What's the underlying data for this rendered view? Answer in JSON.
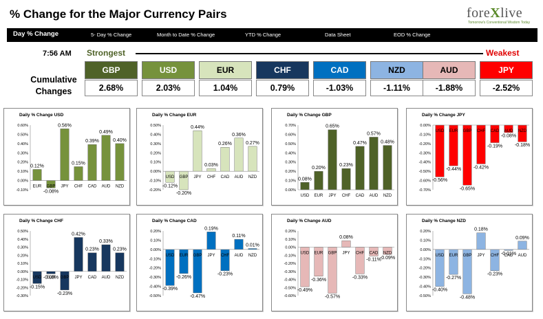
{
  "header": {
    "title": "% Change for the Major Currency Pairs",
    "logo": {
      "main_a": "fore",
      "main_x": "X",
      "main_b": "live",
      "tagline": "Tomorrow's Conventional Wisdom Today"
    }
  },
  "tabs": [
    {
      "label": "Day % Change",
      "active": true
    },
    {
      "label": "5- Day % Change"
    },
    {
      "label": "Month to Date % Change"
    },
    {
      "label": "YTD % Change"
    },
    {
      "label": "Data Sheet"
    },
    {
      "label": "EOD % Change"
    }
  ],
  "summary": {
    "time": "7:56 AM",
    "strongest_label": "Strongest",
    "weakest_label": "Weakest",
    "cumulative_label_line1": "Cumulative",
    "cumulative_label_line2": "Changes",
    "currencies": [
      {
        "code": "GBP",
        "value": "2.68%",
        "color": "#4f6228",
        "text_color": "#ffffff"
      },
      {
        "code": "USD",
        "value": "2.03%",
        "color": "#76923c",
        "text_color": "#ffffff"
      },
      {
        "code": "EUR",
        "value": "1.04%",
        "color": "#d7e4bc",
        "text_color": "#000000"
      },
      {
        "code": "CHF",
        "value": "0.79%",
        "color": "#17375e",
        "text_color": "#ffffff"
      },
      {
        "code": "CAD",
        "value": "-1.03%",
        "color": "#0070c0",
        "text_color": "#ffffff"
      },
      {
        "code": "NZD",
        "value": "-1.11%",
        "color": "#8db4e2",
        "text_color": "#000000"
      },
      {
        "code": "AUD",
        "value": "-1.88%",
        "color": "#e6b8b7",
        "text_color": "#000000"
      },
      {
        "code": "JPY",
        "value": "-2.52%",
        "color": "#ff0000",
        "text_color": "#ffffff"
      }
    ]
  },
  "chart_data": [
    {
      "type": "bar",
      "title": "Daily % Change USD",
      "color": "#76923c",
      "categories": [
        "EUR",
        "GBP",
        "JPY",
        "CHF",
        "CAD",
        "AUD",
        "NZD"
      ],
      "values": [
        0.12,
        -0.08,
        0.56,
        0.15,
        0.39,
        0.49,
        0.4
      ],
      "labels": [
        "0.12%",
        "-0.08%",
        "0.56%",
        "0.15%",
        "0.39%",
        "0.49%",
        "0.40%"
      ],
      "yticks": [
        "0.60%",
        "0.50%",
        "0.40%",
        "0.30%",
        "0.20%",
        "0.10%",
        "0.00%",
        "-0.10%"
      ],
      "ylim": [
        -0.1,
        0.6
      ]
    },
    {
      "type": "bar",
      "title": "Daily % Change EUR",
      "color": "#d7e4bc",
      "categories": [
        "USD",
        "GBP",
        "JPY",
        "CHF",
        "CAD",
        "AUD",
        "NZD"
      ],
      "values": [
        -0.12,
        -0.2,
        0.44,
        0.03,
        0.26,
        0.36,
        0.27
      ],
      "labels": [
        "-0.12%",
        "-0.20%",
        "0.44%",
        "0.03%",
        "0.26%",
        "0.36%",
        "0.27%"
      ],
      "yticks": [
        "0.50%",
        "0.40%",
        "0.30%",
        "0.20%",
        "0.10%",
        "0.00%",
        "-0.10%",
        "-0.20%"
      ],
      "ylim": [
        -0.2,
        0.5
      ]
    },
    {
      "type": "bar",
      "title": "Daily % Change GBP",
      "color": "#4f6228",
      "categories": [
        "USD",
        "EUR",
        "JPY",
        "CHF",
        "CAD",
        "AUD",
        "NZD"
      ],
      "values": [
        0.08,
        0.2,
        0.65,
        0.23,
        0.47,
        0.57,
        0.48
      ],
      "labels": [
        "0.08%",
        "0.20%",
        "0.65%",
        "0.23%",
        "0.47%",
        "0.57%",
        "0.48%"
      ],
      "yticks": [
        "0.70%",
        "0.60%",
        "0.50%",
        "0.40%",
        "0.30%",
        "0.20%",
        "0.10%",
        "0.00%"
      ],
      "ylim": [
        0.0,
        0.7
      ]
    },
    {
      "type": "bar",
      "title": "Daily % Change JPY",
      "color": "#ff0000",
      "categories": [
        "USD",
        "EUR",
        "GBP",
        "CHF",
        "CAD",
        "AUD",
        "NZD"
      ],
      "values": [
        -0.56,
        -0.44,
        -0.65,
        -0.42,
        -0.19,
        -0.08,
        -0.18
      ],
      "labels": [
        "-0.56%",
        "-0.44%",
        "-0.65%",
        "-0.42%",
        "-0.19%",
        "-0.08%",
        "-0.18%"
      ],
      "yticks": [
        "0.00%",
        "-0.10%",
        "-0.20%",
        "-0.30%",
        "-0.40%",
        "-0.50%",
        "-0.60%",
        "-0.70%"
      ],
      "ylim": [
        -0.7,
        0.0
      ]
    },
    {
      "type": "bar",
      "title": "Daily % Change CHF",
      "color": "#17375e",
      "categories": [
        "USD",
        "EUR",
        "GBP",
        "JPY",
        "CAD",
        "AUD",
        "NZD"
      ],
      "values": [
        -0.15,
        -0.03,
        -0.23,
        0.42,
        0.23,
        0.33,
        0.23
      ],
      "labels": [
        "-0.15%",
        "-0.03%",
        "-0.23%",
        "0.42%",
        "0.23%",
        "0.33%",
        "0.23%"
      ],
      "yticks": [
        "0.50%",
        "0.40%",
        "0.30%",
        "0.20%",
        "0.10%",
        "0.00%",
        "-0.10%",
        "-0.20%",
        "-0.30%"
      ],
      "ylim": [
        -0.3,
        0.5
      ]
    },
    {
      "type": "bar",
      "title": "Daily % Change CAD",
      "color": "#0070c0",
      "categories": [
        "USD",
        "EUR",
        "GBP",
        "JPY",
        "CHF",
        "AUD",
        "NZD"
      ],
      "values": [
        -0.39,
        -0.26,
        -0.47,
        0.19,
        -0.23,
        0.11,
        0.01
      ],
      "labels": [
        "-0.39%",
        "-0.26%",
        "-0.47%",
        "0.19%",
        "-0.23%",
        "0.11%",
        "0.01%"
      ],
      "yticks": [
        "0.20%",
        "0.10%",
        "0.00%",
        "-0.10%",
        "-0.20%",
        "-0.30%",
        "-0.40%",
        "-0.50%"
      ],
      "ylim": [
        -0.5,
        0.2
      ]
    },
    {
      "type": "bar",
      "title": "Daily % Change AUD",
      "color": "#e6b8b7",
      "categories": [
        "USD",
        "EUR",
        "GBP",
        "JPY",
        "CHF",
        "CAD",
        "NZD"
      ],
      "values": [
        -0.49,
        -0.36,
        -0.57,
        0.08,
        -0.33,
        -0.11,
        -0.09
      ],
      "labels": [
        "-0.49%",
        "-0.36%",
        "-0.57%",
        "0.08%",
        "-0.33%",
        "-0.11%",
        "-0.09%"
      ],
      "yticks": [
        "0.20%",
        "0.10%",
        "0.00%",
        "-0.10%",
        "-0.20%",
        "-0.30%",
        "-0.40%",
        "-0.50%",
        "-0.60%"
      ],
      "ylim": [
        -0.6,
        0.2
      ]
    },
    {
      "type": "bar",
      "title": "Daily % Change NZD",
      "color": "#8db4e2",
      "categories": [
        "USD",
        "EUR",
        "GBP",
        "JPY",
        "CHF",
        "CAD",
        "AUD"
      ],
      "values": [
        -0.4,
        -0.27,
        -0.48,
        0.18,
        -0.23,
        -0.01,
        0.09
      ],
      "labels": [
        "-0.40%",
        "-0.27%",
        "-0.48%",
        "0.18%",
        "-0.23%",
        "-0.01%",
        "0.09%"
      ],
      "yticks": [
        "0.20%",
        "0.10%",
        "0.00%",
        "-0.10%",
        "-0.20%",
        "-0.30%",
        "-0.40%",
        "-0.50%"
      ],
      "ylim": [
        -0.5,
        0.2
      ]
    }
  ]
}
